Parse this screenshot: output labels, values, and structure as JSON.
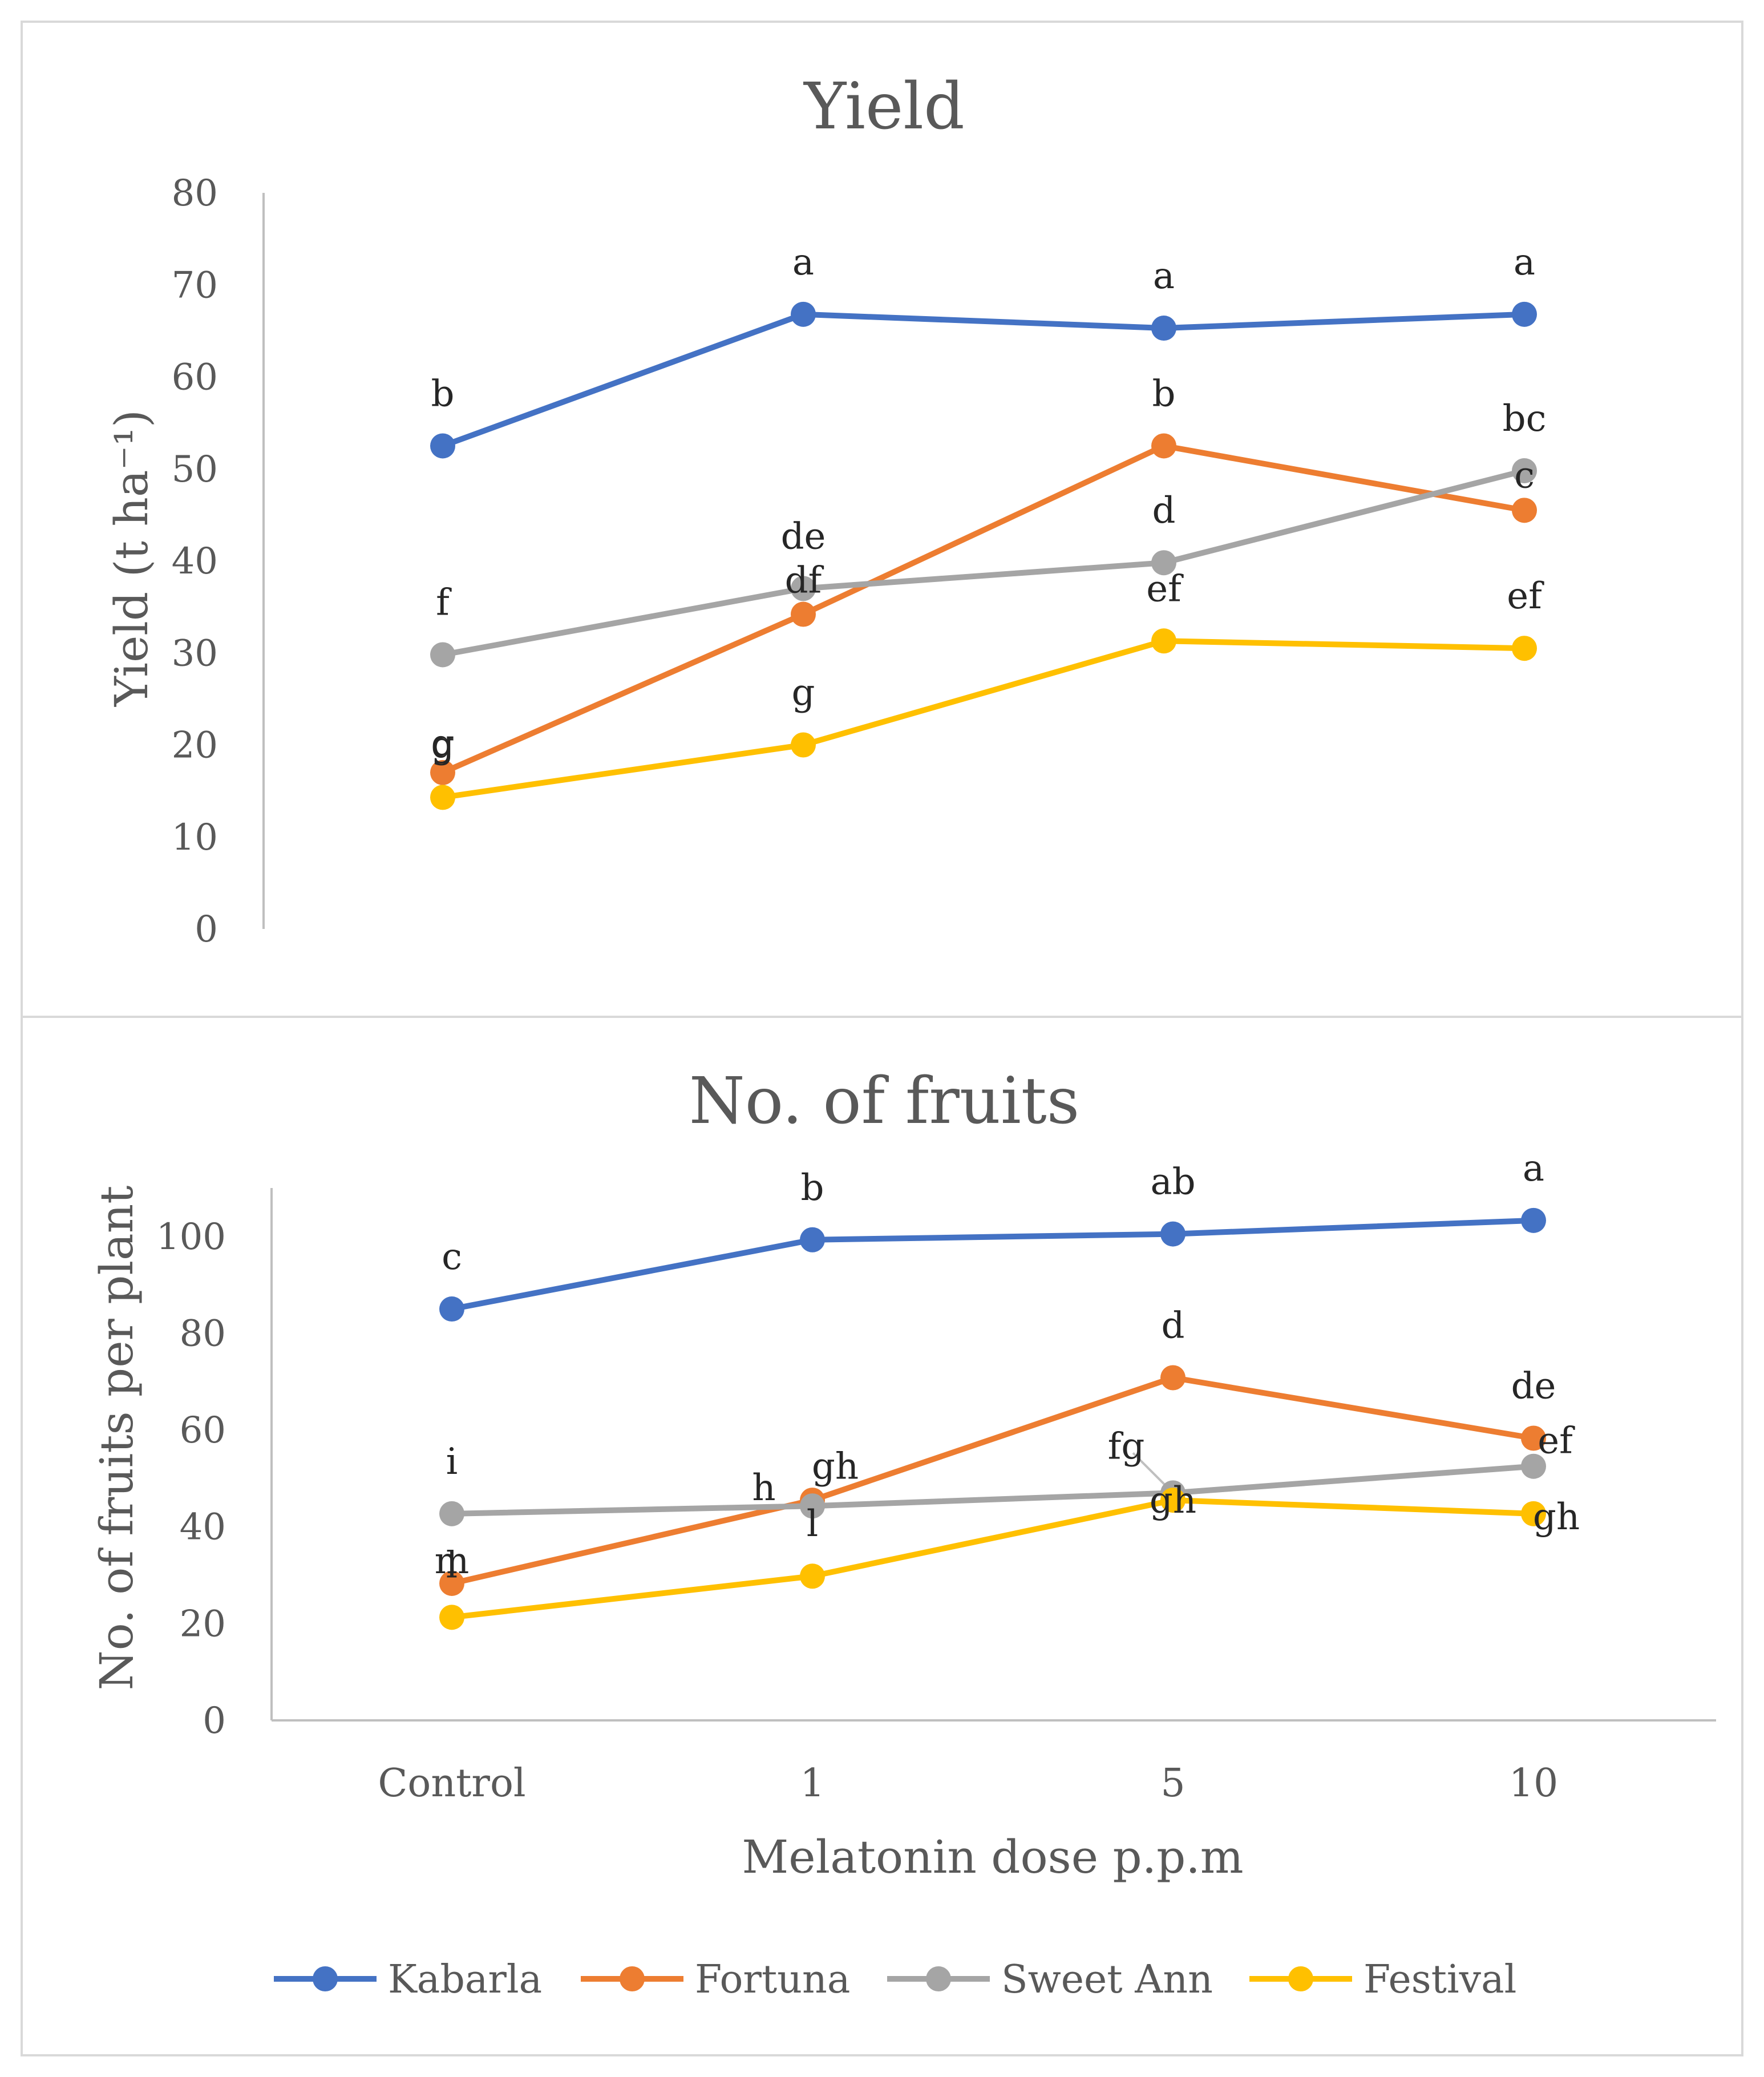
{
  "colors": {
    "Kabarla": "#4472c4",
    "Fortuna": "#ed7d31",
    "Sweet Ann": "#a5a5a5",
    "Festival": "#ffc000",
    "axis": "#bfbfbf",
    "text": "#595959",
    "letters": "#262626",
    "frame": "#d9d9d9"
  },
  "legend": {
    "placement": "bottom",
    "items": [
      "Kabarla",
      "Fortuna",
      "Sweet Ann",
      "Festival"
    ]
  },
  "chart_data": [
    {
      "type": "line",
      "title": "Yield",
      "xlabel": "",
      "ylabel": "Yield (t ha⁻¹)",
      "categories": [
        "Control",
        "1",
        "5",
        "10"
      ],
      "ylim": [
        0,
        80
      ],
      "yticks": [
        0,
        10,
        20,
        30,
        40,
        50,
        60,
        70,
        80
      ],
      "show_category_labels": false,
      "grid": false,
      "series": [
        {
          "name": "Kabarla",
          "values": [
            52.5,
            66.8,
            65.3,
            66.8
          ],
          "labels": [
            "b",
            "a",
            "a",
            "a"
          ]
        },
        {
          "name": "Fortuna",
          "values": [
            17.0,
            34.2,
            52.5,
            45.5
          ],
          "labels": [
            "g",
            "df",
            "b",
            "c"
          ]
        },
        {
          "name": "Sweet Ann",
          "values": [
            29.8,
            37.0,
            39.8,
            49.8
          ],
          "labels": [
            "f",
            "de",
            "d",
            "bc"
          ]
        },
        {
          "name": "Festival",
          "values": [
            14.3,
            20.0,
            31.3,
            30.5
          ],
          "labels": [
            "g",
            "g",
            "ef",
            "ef"
          ]
        }
      ]
    },
    {
      "type": "line",
      "title": "No. of fruits",
      "xlabel": "Melatonin dose p.p.m",
      "ylabel": "No. of fruits per plant",
      "categories": [
        "Control",
        "1",
        "5",
        "10"
      ],
      "ylim": [
        0,
        110
      ],
      "yticks": [
        0,
        20,
        40,
        60,
        80,
        100
      ],
      "show_category_labels": true,
      "grid": false,
      "series": [
        {
          "name": "Kabarla",
          "values": [
            85.0,
            99.3,
            100.5,
            103.3
          ],
          "labels": [
            "c",
            "b",
            "ab",
            "a"
          ]
        },
        {
          "name": "Fortuna",
          "values": [
            28.3,
            45.5,
            70.8,
            58.3
          ],
          "labels": [
            "m",
            "h",
            "d",
            "de"
          ]
        },
        {
          "name": "Sweet Ann",
          "values": [
            42.7,
            44.3,
            47.0,
            52.5
          ],
          "labels": [
            "i",
            "gh",
            "fg",
            "ef"
          ]
        },
        {
          "name": "Festival",
          "values": [
            21.3,
            29.8,
            45.5,
            42.7
          ],
          "labels": [
            "l",
            "l",
            "gh",
            "gh"
          ]
        }
      ]
    }
  ]
}
